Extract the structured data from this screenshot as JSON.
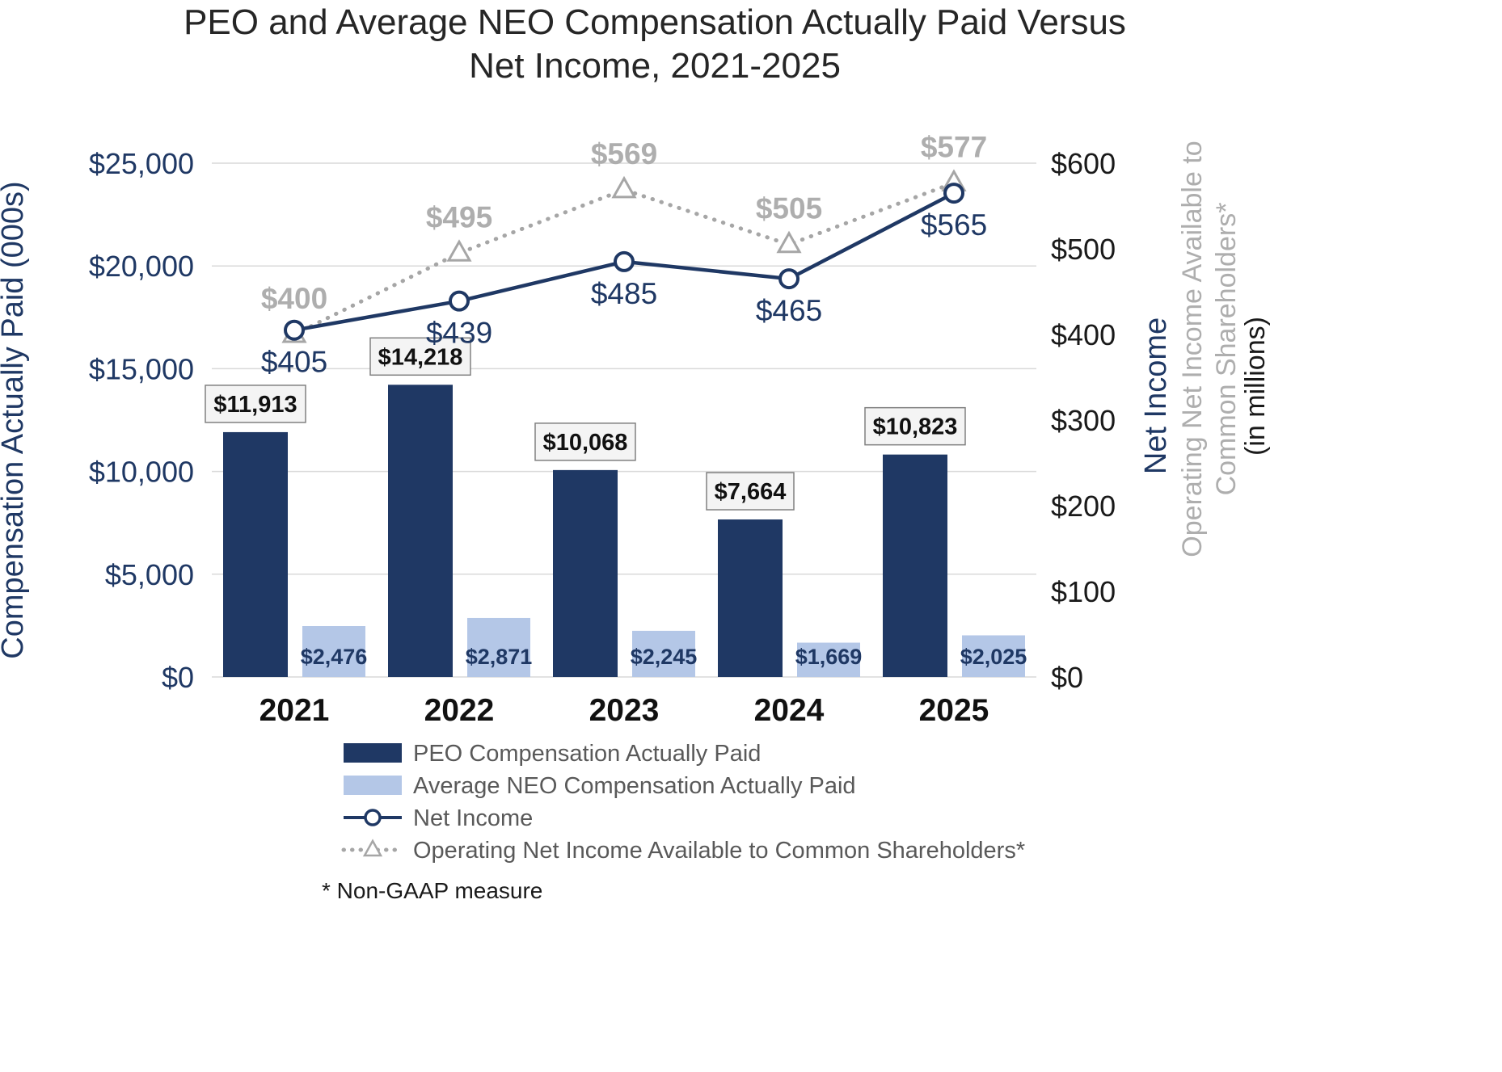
{
  "title": {
    "line1": "PEO and Average NEO Compensation Actually Paid Versus",
    "line2": "Net Income, 2021-2025"
  },
  "footnote": "* Non-GAAP measure",
  "axes": {
    "left_title": "Compensation Actually Paid (000s)",
    "left_ticks": [
      "$0",
      "$5,000",
      "$10,000",
      "$15,000",
      "$20,000",
      "$25,000"
    ],
    "right_ticks": [
      "$0",
      "$100",
      "$200",
      "$300",
      "$400",
      "$500",
      "$600"
    ],
    "right_title_net_income": "Net Income",
    "right_title_operating_1": "Operating Net Income Available to",
    "right_title_operating_2": "Common Shareholders*",
    "right_title_units": "(in millions)"
  },
  "colors": {
    "navy": "#1F3864",
    "light_blue": "#B4C7E7",
    "gray_line": "#A6A6A6",
    "gray_label": "#AEAEAE",
    "grid": "#D9D9D9"
  },
  "chart_data": {
    "type": "bar",
    "subtype": "combo-bar-line-dual-axis",
    "title": "PEO and Average NEO Compensation Actually Paid Versus Net Income, 2021-2025",
    "categories": [
      "2021",
      "2022",
      "2023",
      "2024",
      "2025"
    ],
    "left_axis": {
      "label": "Compensation Actually Paid (000s)",
      "min": 0,
      "max": 25000,
      "step": 5000
    },
    "right_axis": {
      "label": "Net Income / Operating Net Income Available to Common Shareholders* (in millions)",
      "min": 0,
      "max": 600,
      "step": 100
    },
    "grid": true,
    "legend_position": "bottom",
    "series": [
      {
        "name": "PEO Compensation Actually Paid",
        "type": "bar",
        "axis": "left",
        "values": [
          11913,
          14218,
          10068,
          7664,
          10823
        ],
        "labels": [
          "$11,913",
          "$14,218",
          "$10,068",
          "$7,664",
          "$10,823"
        ],
        "color": "#1F3864"
      },
      {
        "name": "Average NEO Compensation Actually Paid",
        "type": "bar",
        "axis": "left",
        "values": [
          2476,
          2871,
          2245,
          1669,
          2025
        ],
        "labels": [
          "$2,476",
          "$2,871",
          "$2,245",
          "$1,669",
          "$2,025"
        ],
        "color": "#B4C7E7"
      },
      {
        "name": "Net Income",
        "type": "line",
        "axis": "right",
        "marker": "circle",
        "values": [
          405,
          439,
          485,
          465,
          565
        ],
        "labels": [
          "$405",
          "$439",
          "$485",
          "$465",
          "$565"
        ],
        "color": "#1F3864"
      },
      {
        "name": "Operating Net Income Available to Common Shareholders*",
        "type": "line-dotted",
        "axis": "right",
        "marker": "triangle",
        "values": [
          400,
          495,
          569,
          505,
          577
        ],
        "labels": [
          "$400",
          "$495",
          "$569",
          "$505",
          "$577"
        ],
        "color": "#A6A6A6"
      }
    ]
  }
}
